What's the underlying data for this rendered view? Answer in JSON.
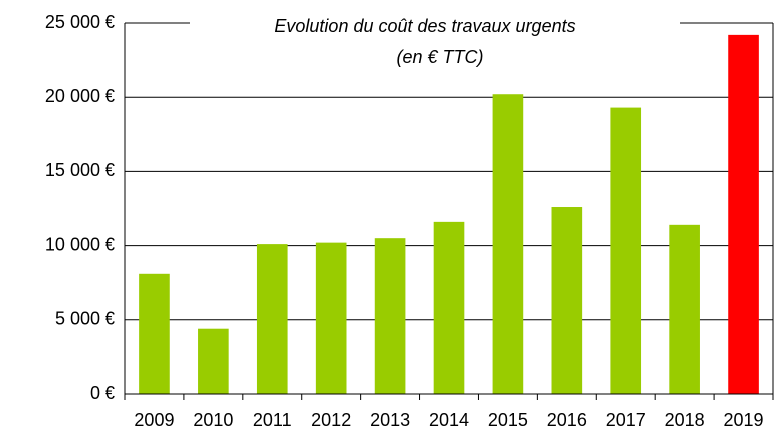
{
  "chart_data": {
    "type": "bar",
    "title": "Evolution du coût des travaux urgents",
    "subtitle": "(en  € TTC)",
    "categories": [
      "2009",
      "2010",
      "2011",
      "2012",
      "2013",
      "2014",
      "2015",
      "2016",
      "2017",
      "2018",
      "2019"
    ],
    "values": [
      8100,
      4400,
      10100,
      10200,
      10500,
      11600,
      20200,
      12600,
      19300,
      11400,
      24200
    ],
    "colors": [
      "#99cc00",
      "#99cc00",
      "#99cc00",
      "#99cc00",
      "#99cc00",
      "#99cc00",
      "#99cc00",
      "#99cc00",
      "#99cc00",
      "#99cc00",
      "#ff0000"
    ],
    "ylim": [
      0,
      25000
    ],
    "yticks": [
      {
        "value": 0,
        "label": "0 €"
      },
      {
        "value": 5000,
        "label": "5 000 €"
      },
      {
        "value": 10000,
        "label": "10 000 €"
      },
      {
        "value": 15000,
        "label": "15 000 €"
      },
      {
        "value": 20000,
        "label": "20 000 €"
      },
      {
        "value": 25000,
        "label": "25 000 €"
      }
    ],
    "grid": true
  }
}
